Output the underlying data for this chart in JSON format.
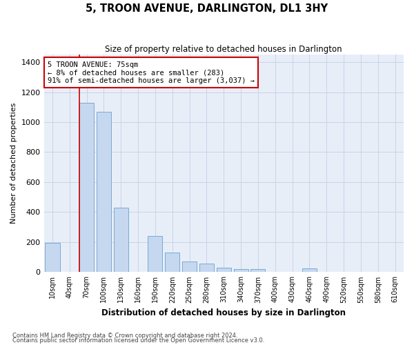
{
  "title": "5, TROON AVENUE, DARLINGTON, DL1 3HY",
  "subtitle": "Size of property relative to detached houses in Darlington",
  "xlabel": "Distribution of detached houses by size in Darlington",
  "ylabel": "Number of detached properties",
  "categories": [
    "10sqm",
    "40sqm",
    "70sqm",
    "100sqm",
    "130sqm",
    "160sqm",
    "190sqm",
    "220sqm",
    "250sqm",
    "280sqm",
    "310sqm",
    "340sqm",
    "370sqm",
    "400sqm",
    "430sqm",
    "460sqm",
    "490sqm",
    "520sqm",
    "550sqm",
    "580sqm",
    "610sqm"
  ],
  "bar_values": [
    195,
    0,
    1130,
    1070,
    430,
    0,
    240,
    130,
    70,
    55,
    30,
    20,
    20,
    0,
    0,
    25,
    0,
    0,
    0,
    0,
    0
  ],
  "bar_color": "#c5d8f0",
  "bar_edge_color": "#7aaad0",
  "vline_color": "#cc0000",
  "vline_index": 2,
  "annotation_text": "5 TROON AVENUE: 75sqm\n← 8% of detached houses are smaller (283)\n91% of semi-detached houses are larger (3,037) →",
  "annotation_box_color": "#ffffff",
  "annotation_box_edge": "#cc0000",
  "ylim": [
    0,
    1450
  ],
  "yticks": [
    0,
    200,
    400,
    600,
    800,
    1000,
    1200,
    1400
  ],
  "grid_color": "#c8d4e8",
  "background_color": "#e8eef8",
  "footer1": "Contains HM Land Registry data © Crown copyright and database right 2024.",
  "footer2": "Contains public sector information licensed under the Open Government Licence v3.0."
}
